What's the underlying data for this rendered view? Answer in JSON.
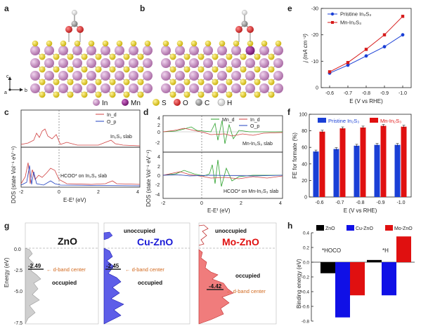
{
  "panels": {
    "a": {
      "letter": "a",
      "axes": {
        "c": "c",
        "a": "a",
        "b": "b"
      }
    },
    "b": {
      "letter": "b"
    },
    "legend": {
      "items": [
        {
          "sym": "In",
          "color": "#c98cc4"
        },
        {
          "sym": "Mn",
          "color": "#8f1f8a"
        },
        {
          "sym": "S",
          "color": "#ead11a"
        },
        {
          "sym": "O",
          "color": "#d92b2b"
        },
        {
          "sym": "C",
          "color": "#9a9a9a"
        },
        {
          "sym": "H",
          "color": "#ffffff"
        }
      ]
    },
    "c": {
      "letter": "c",
      "series": [
        "In_d",
        "O_p"
      ],
      "top_label": "In₂S₃ slab",
      "bottom_label": "HCOO* on In₂S₃ slab",
      "ylabel": "DOS (state Vol⁻¹ eV⁻¹)",
      "xlabel": "E-Eᶠ (eV)",
      "xticks": [
        "-2",
        "0",
        "2",
        "4"
      ]
    },
    "d": {
      "letter": "d",
      "series": [
        "Mn_d",
        "In_d",
        "O_p"
      ],
      "top_label": "Mn-In₂S₃ slab",
      "bottom_label": "HCOO* on Mn-In₂S₃ slab",
      "ylabel": "DOS (state Vol⁻¹ eV⁻¹)",
      "xlabel": "E-Eᶠ (eV)",
      "yticks_top": [
        "4",
        "2",
        "0",
        "-2"
      ],
      "yticks_bottom": [
        "4",
        "2",
        "0",
        "-2",
        "-4"
      ],
      "xticks": [
        "-2",
        "0",
        "2",
        "4"
      ]
    },
    "g": {
      "letter": "g",
      "ylabel": "Energy (eV)",
      "yticks": [
        "0.0",
        "-2.5",
        "-5.0",
        "-7.5"
      ],
      "zno": {
        "title": "ZnO",
        "center_value": "-2.49",
        "center_label": "← d-band center",
        "occupied": "occupied"
      },
      "cu": {
        "title": "Cu-ZnO",
        "center_value": "-2.45",
        "center_label": "← d-band center",
        "occupied": "occupied",
        "unoccupied": "unoccupied"
      },
      "mo": {
        "title": "Mo-ZnO",
        "center_value": "-4.42",
        "center_label": "← d-band center",
        "occupied": "occupied",
        "unoccupied": "unoccupied"
      }
    },
    "h": {
      "letter": "h",
      "ylabel": "Binding energy (eV)",
      "legend": [
        "ZnO",
        "Cu-ZnO",
        "Mo-ZnO"
      ],
      "groups": [
        "*HOCO",
        "*H"
      ],
      "yticks": [
        "0.4",
        "0.2",
        "0.0",
        "-0.2",
        "-0.4",
        "-0.6",
        "-0.8"
      ]
    }
  },
  "chart_data": [
    {
      "panel": "e",
      "type": "line",
      "x": [
        "-0.6",
        "-0.7",
        "-0.8",
        "-0.9",
        "-1.0"
      ],
      "xlabel": "E (V vs RHE)",
      "ylabel": "j (mA cm⁻²)",
      "ylim": [
        0,
        -30
      ],
      "yticks": [
        "-30",
        "-20",
        "-10",
        "0"
      ],
      "series": [
        {
          "name": "Pristine In₂S₃",
          "values": [
            -5.5,
            -8.5,
            -12,
            -15.5,
            -20
          ],
          "color": "#1a3fd6"
        },
        {
          "name": "Mn-In₂S₃",
          "values": [
            -6,
            -9.5,
            -14.5,
            -20,
            -27
          ],
          "color": "#d61a1a"
        }
      ],
      "legend_position": "top-left"
    },
    {
      "panel": "f",
      "type": "bar",
      "categories": [
        "-0.6",
        "-0.7",
        "-0.8",
        "-0.9",
        "-1.0"
      ],
      "xlabel": "E (V vs RHE)",
      "ylabel": "FE for formate (%)",
      "ylim": [
        0,
        100
      ],
      "yticks": [
        "0",
        "20",
        "40",
        "60",
        "80",
        "100"
      ],
      "series": [
        {
          "name": "Pristine In₂S₃",
          "values": [
            55,
            58,
            62,
            63,
            63
          ],
          "color": "#1a3fd6"
        },
        {
          "name": "Mn-In₂S₃",
          "values": [
            79,
            83,
            84,
            86,
            85
          ],
          "color": "#e01010"
        }
      ],
      "legend_position": "top"
    },
    {
      "panel": "h",
      "type": "bar",
      "categories": [
        "*HOCO",
        "*H"
      ],
      "ylim": [
        -0.8,
        0.4
      ],
      "series": [
        {
          "name": "ZnO",
          "values": [
            -0.15,
            0.03
          ],
          "color": "#000000"
        },
        {
          "name": "Cu-ZnO",
          "values": [
            -0.75,
            -0.45
          ],
          "color": "#1010e6"
        },
        {
          "name": "Mo-ZnO",
          "values": [
            -0.45,
            0.35
          ],
          "color": "#e01010"
        }
      ]
    }
  ]
}
